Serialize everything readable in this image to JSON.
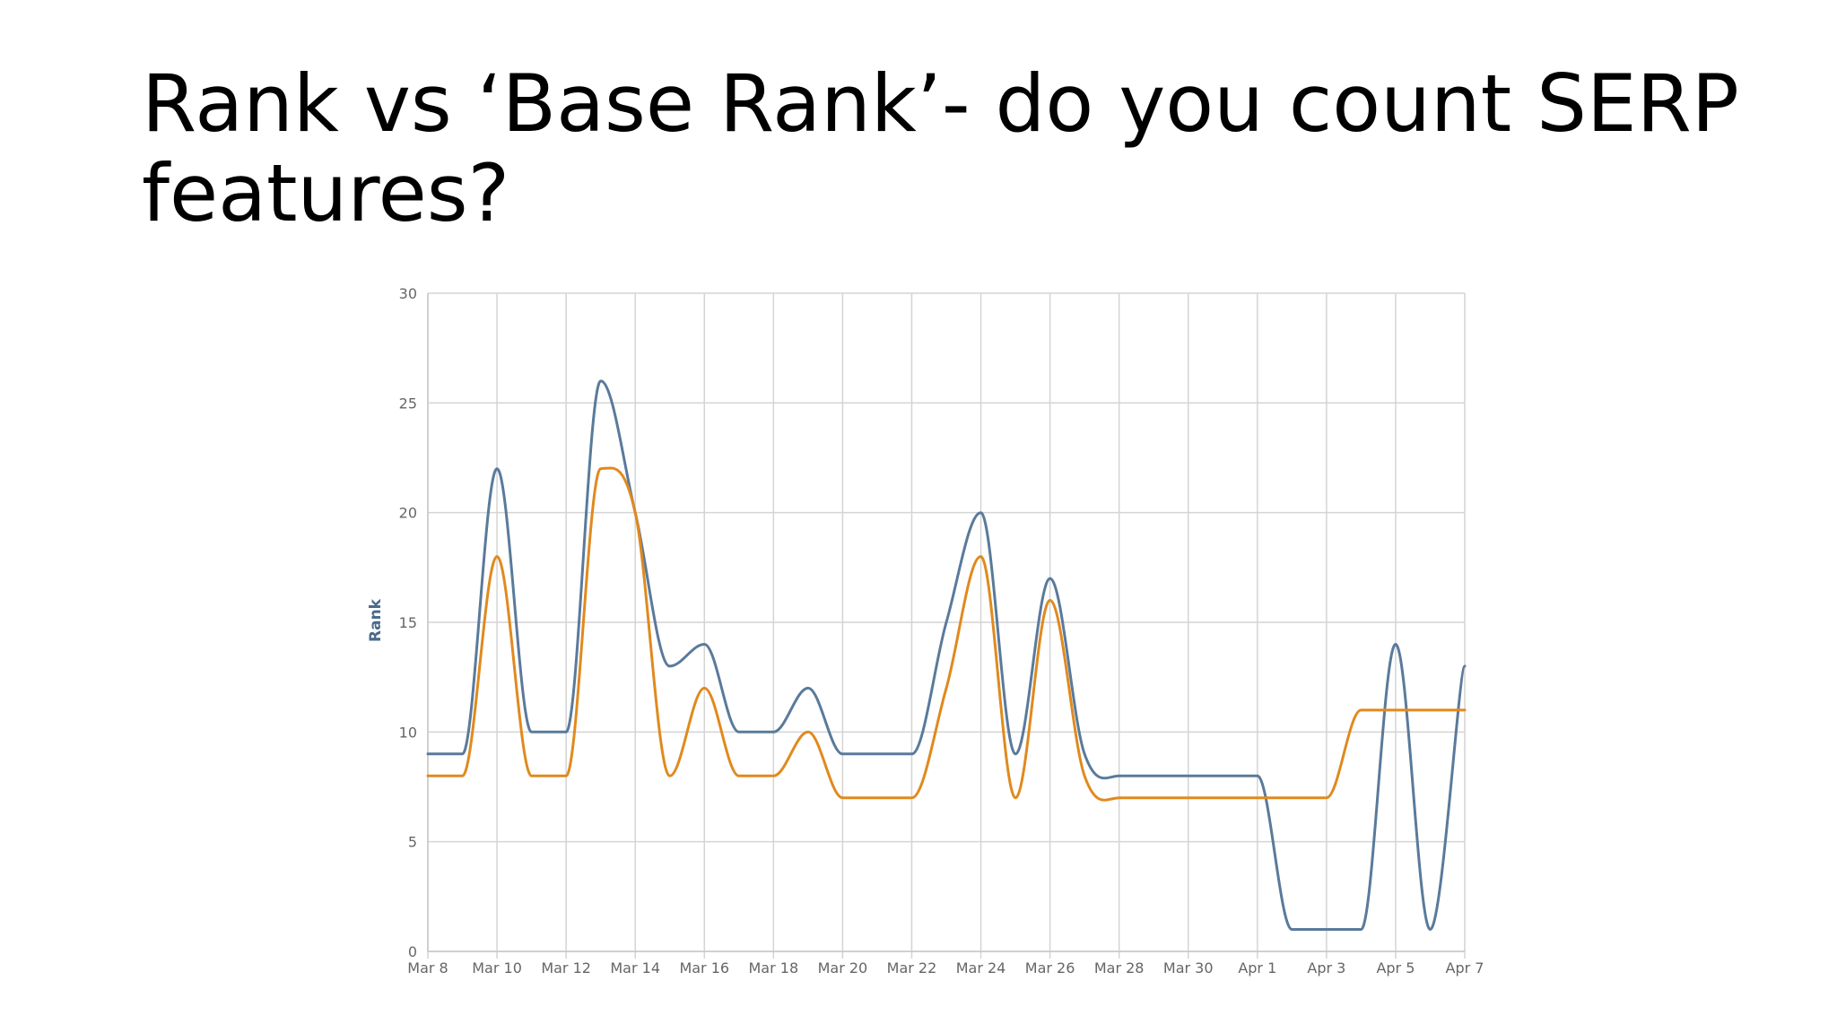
{
  "slide": {
    "title_line1": "Rank vs ‘Base Rank’- do you count SERP",
    "title_line2": "features?"
  },
  "chart_data": {
    "type": "line",
    "title": "",
    "xlabel": "",
    "ylabel": "Rank",
    "ylim": [
      0,
      30
    ],
    "yticks": [
      0,
      5,
      10,
      15,
      20,
      25,
      30
    ],
    "x_range_days": [
      "Mar 8",
      "Apr 7"
    ],
    "xtick_labels": [
      "Mar 8",
      "Mar 10",
      "Mar 12",
      "Mar 14",
      "Mar 16",
      "Mar 18",
      "Mar 20",
      "Mar 22",
      "Mar 24",
      "Mar 26",
      "Mar 28",
      "Mar 30",
      "Apr 1",
      "Apr 3",
      "Apr 5",
      "Apr 7"
    ],
    "grid": true,
    "legend": "none",
    "x": [
      "Mar 8",
      "Mar 9",
      "Mar 10",
      "Mar 11",
      "Mar 12",
      "Mar 13",
      "Mar 14",
      "Mar 15",
      "Mar 16",
      "Mar 17",
      "Mar 18",
      "Mar 19",
      "Mar 20",
      "Mar 21",
      "Mar 22",
      "Mar 23",
      "Mar 24",
      "Mar 25",
      "Mar 26",
      "Mar 27",
      "Mar 28",
      "Mar 29",
      "Mar 30",
      "Mar 31",
      "Apr 1",
      "Apr 2",
      "Apr 3",
      "Apr 4",
      "Apr 5",
      "Apr 6",
      "Apr 7"
    ],
    "series": [
      {
        "color": "#5a7a9b",
        "values": [
          9,
          9,
          22,
          10,
          10,
          26,
          20,
          13,
          14,
          10,
          10,
          12,
          9,
          9,
          9,
          15,
          20,
          9,
          17,
          9,
          8,
          8,
          8,
          8,
          8,
          1,
          1,
          1,
          14,
          1,
          13
        ]
      },
      {
        "color": "#e08a1e",
        "values": [
          8,
          8,
          18,
          8,
          8,
          22,
          20,
          8,
          12,
          8,
          8,
          10,
          7,
          7,
          7,
          12,
          18,
          7,
          16,
          8,
          7,
          7,
          7,
          7,
          7,
          7,
          7,
          11,
          11,
          11,
          11
        ]
      }
    ],
    "colors": {
      "axis_text": "#666666",
      "ylabel": "#4a6a8c",
      "grid": "#d4d4d4"
    }
  }
}
